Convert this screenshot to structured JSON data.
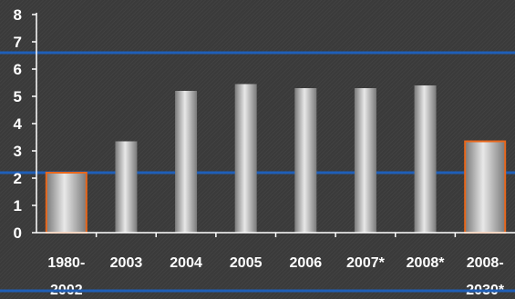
{
  "chart_data": {
    "type": "bar",
    "title": "",
    "xlabel": "",
    "ylabel": "",
    "categories": [
      [
        "1980-",
        "2002"
      ],
      [
        "2003"
      ],
      [
        "2004"
      ],
      [
        "2005"
      ],
      [
        "2006"
      ],
      [
        "2007*"
      ],
      [
        "2008*"
      ],
      [
        "2008-",
        "2030*"
      ]
    ],
    "values": [
      2.2,
      3.35,
      5.2,
      5.45,
      5.3,
      5.3,
      5.4,
      3.35
    ],
    "highlighted": [
      true,
      false,
      false,
      false,
      false,
      false,
      false,
      true
    ],
    "ylim": [
      0,
      8
    ],
    "yticks": [
      "0",
      "1",
      "2",
      "3",
      "4",
      "5",
      "6",
      "7",
      "8"
    ],
    "reference_lines": [
      6.6,
      2.2
    ],
    "grid": false,
    "colors": {
      "bar_light": "#e8e8e8",
      "bar_dark": "#7a7a7a",
      "highlight_border": "#e8671c",
      "reference_line": "#1f5fb8",
      "axis": "#ffffff",
      "text": "#ffffff"
    }
  }
}
